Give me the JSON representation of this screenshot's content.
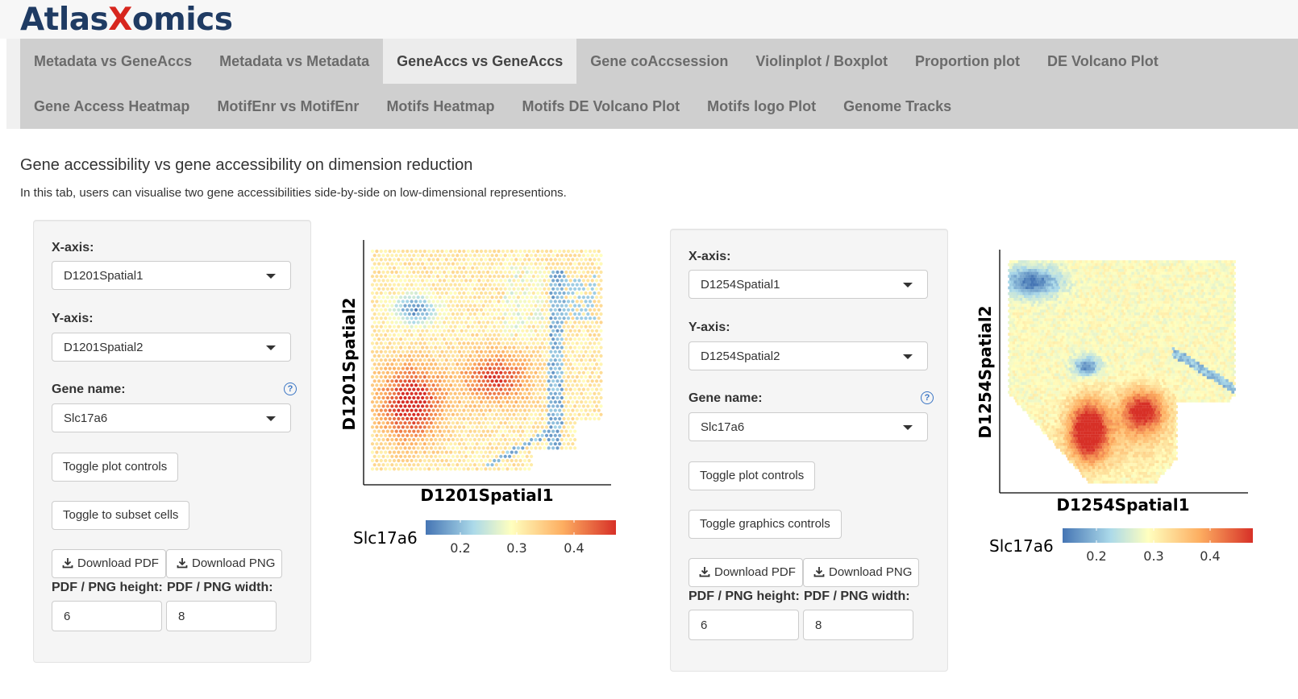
{
  "app": {
    "logo_left": "Atlas",
    "logo_x": "X",
    "logo_right": "omics"
  },
  "nav": {
    "row1": [
      "Metadata vs GeneAccs",
      "Metadata vs Metadata",
      "GeneAccs vs GeneAccs",
      "Gene coAccsession",
      "Violinplot / Boxplot",
      "Proportion plot",
      "DE Volcano Plot"
    ],
    "row2": [
      "Gene Access Heatmap",
      "MotifEnr vs MotifEnr",
      "Motifs Heatmap",
      "Motifs DE Volcano Plot",
      "Motifs logo Plot",
      "Genome Tracks"
    ],
    "active": "GeneAccs vs GeneAccs"
  },
  "page": {
    "title": "Gene accessibility vs gene accessibility on dimension reduction",
    "description": "In this tab, users can visualise two gene accessibilities side-by-side on low-dimensional representions."
  },
  "left": {
    "x_label": "X-axis:",
    "x_value": "D1201Spatial1",
    "y_label": "Y-axis:",
    "y_value": "D1201Spatial2",
    "gene_label": "Gene name:",
    "gene_value": "Slc17a6",
    "btn1": "Toggle plot controls",
    "btn2": "Toggle to subset cells",
    "pdf": "Download PDF",
    "png": "Download PNG",
    "h_label": "PDF / PNG height:",
    "w_label": "PDF / PNG width:",
    "h_value": "6",
    "w_value": "8",
    "plot": {
      "xlabel": "D1201Spatial1",
      "ylabel": "D1201Spatial2",
      "legend_title": "Slc17a6",
      "ticks": [
        "0.2",
        "0.3",
        "0.4"
      ]
    }
  },
  "right": {
    "x_label": "X-axis:",
    "x_value": "D1254Spatial1",
    "y_label": "Y-axis:",
    "y_value": "D1254Spatial2",
    "gene_label": "Gene name:",
    "gene_value": "Slc17a6",
    "btn1": "Toggle plot controls",
    "btn2": "Toggle graphics controls",
    "pdf": "Download PDF",
    "png": "Download PNG",
    "h_label": "PDF / PNG height:",
    "w_label": "PDF / PNG width:",
    "h_value": "6",
    "w_value": "8",
    "plot": {
      "xlabel": "D1254Spatial1",
      "ylabel": "D1254Spatial2",
      "legend_title": "Slc17a6",
      "ticks": [
        "0.2",
        "0.3",
        "0.4"
      ]
    }
  },
  "icons": {
    "help": "question-circle-icon",
    "download": "download-icon"
  },
  "colors": {
    "low": "#4575b4",
    "mid": "#ffffbf",
    "high": "#d73027",
    "nav_bg": "#cfcfcf",
    "logo_blue": "#1f3b63",
    "logo_red": "#d7261e"
  }
}
